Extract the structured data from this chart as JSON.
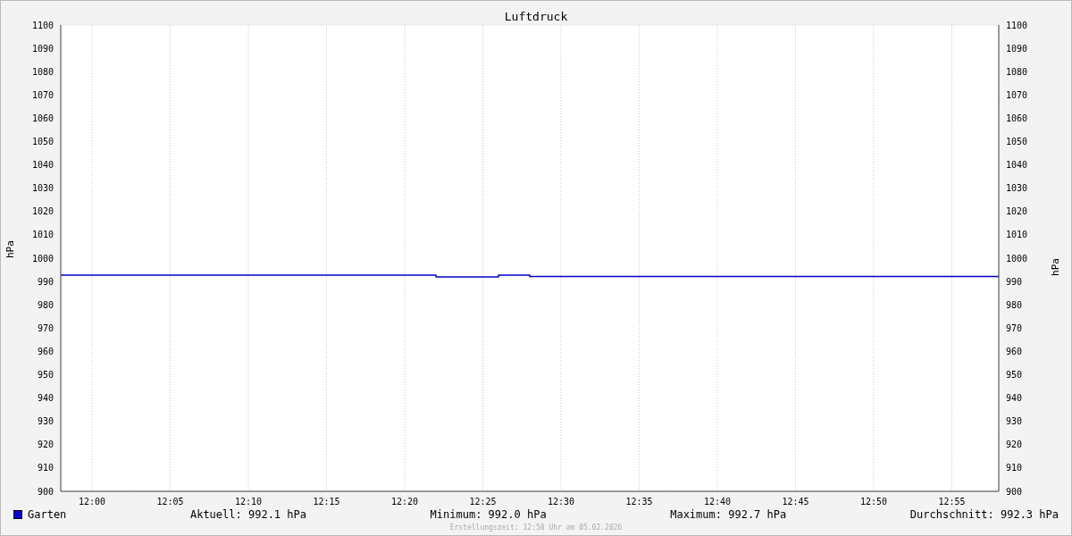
{
  "chart_data": {
    "type": "step",
    "title": "Luftdruck",
    "ylabel": "hPa",
    "y2label": "hPa",
    "x": [
      11.9667,
      12.3667,
      12.4333,
      12.4667,
      12.9667
    ],
    "series": [
      {
        "name": "Garten",
        "color": "#0000cc",
        "values": [
          992.7,
          992.0,
          992.7,
          992.1,
          992.1
        ]
      }
    ],
    "xlim": [
      11.9667,
      12.9667
    ],
    "xticks": [
      {
        "value": 12,
        "label": "12:00"
      },
      {
        "value": 12.0833,
        "label": "12:05"
      },
      {
        "value": 12.1667,
        "label": "12:10"
      },
      {
        "value": 12.25,
        "label": "12:15"
      },
      {
        "value": 12.3333,
        "label": "12:20"
      },
      {
        "value": 12.4167,
        "label": "12:25"
      },
      {
        "value": 12.5,
        "label": "12:30"
      },
      {
        "value": 12.5833,
        "label": "12:35"
      },
      {
        "value": 12.6667,
        "label": "12:40"
      },
      {
        "value": 12.75,
        "label": "12:45"
      },
      {
        "value": 12.8333,
        "label": "12:50"
      },
      {
        "value": 12.9167,
        "label": "12:55"
      }
    ],
    "ylim": [
      900,
      1100
    ],
    "yticks": [
      900,
      910,
      920,
      930,
      940,
      950,
      960,
      970,
      980,
      990,
      1000,
      1010,
      1020,
      1030,
      1040,
      1050,
      1060,
      1070,
      1080,
      1090,
      1100
    ],
    "y2lim": [
      900,
      1100
    ],
    "y2ticks": [
      900,
      910,
      920,
      930,
      940,
      950,
      960,
      970,
      980,
      990,
      1000,
      1010,
      1020,
      1030,
      1040,
      1050,
      1060,
      1070,
      1080,
      1090,
      1100
    ],
    "grid": true,
    "legend": "bottom left",
    "marker": "none",
    "line_style": "solid",
    "annotations": [
      "Aktuell: 992.1 hPa",
      "Minimum: 992.0 hPa",
      "Maximum: 992.7 hPa",
      "Durchschnitt: 992.3 hPa",
      "Erstellungszeit: 12:58 Uhr am 05.02.2026"
    ]
  }
}
